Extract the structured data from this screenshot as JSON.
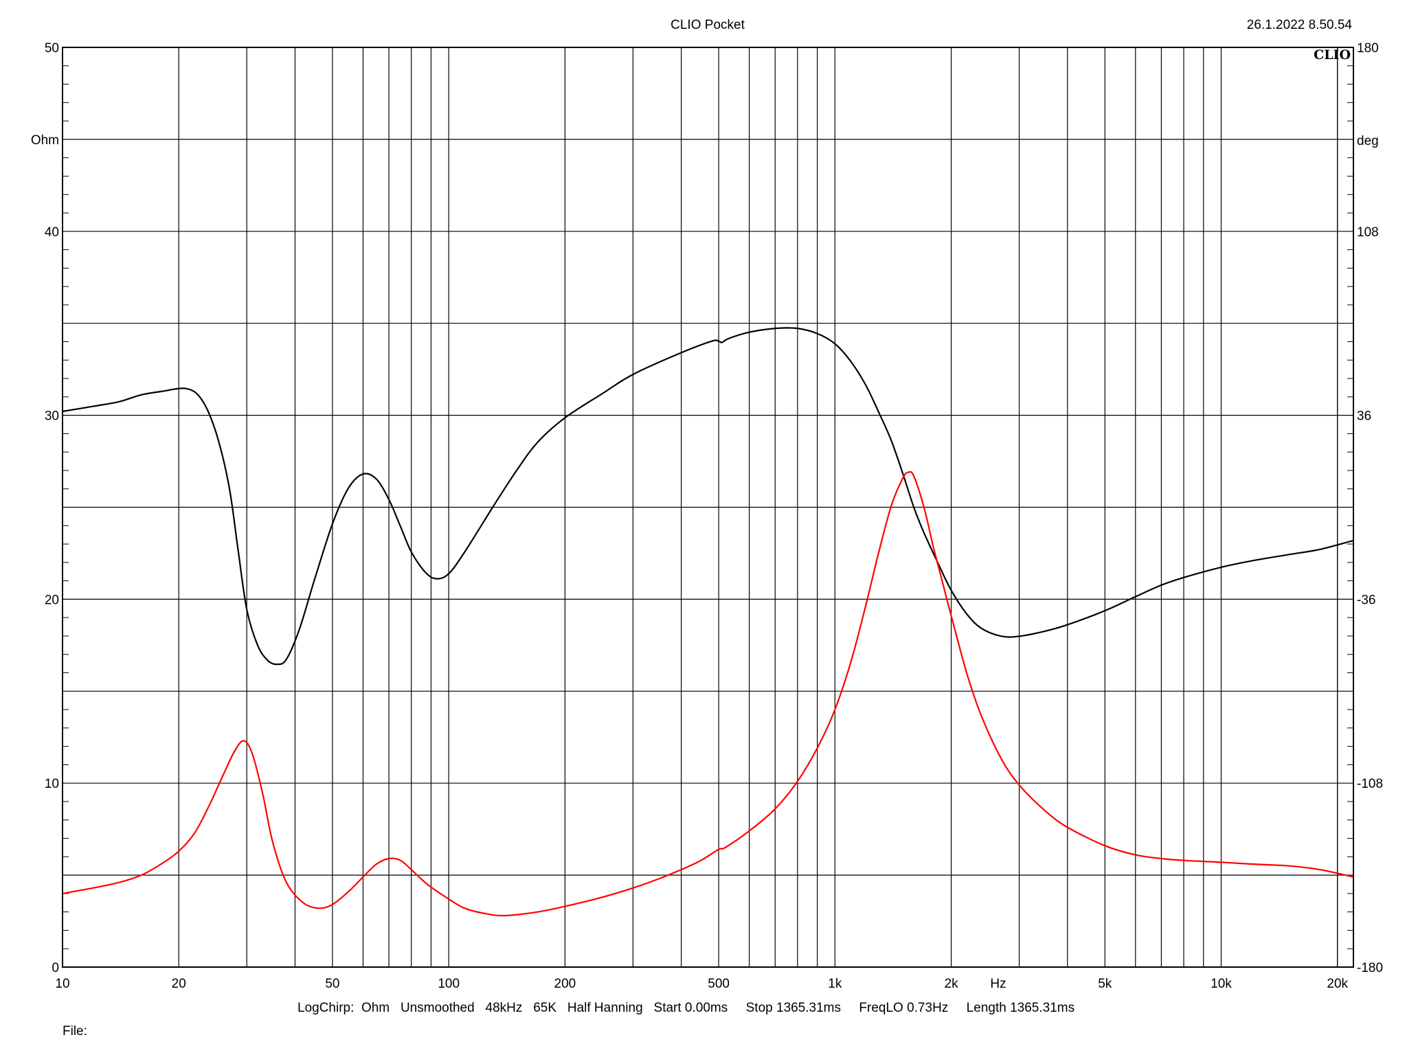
{
  "header": {
    "title": "CLIO Pocket",
    "datetime": "26.1.2022 8.50.54",
    "logo": "CLIO"
  },
  "footer": {
    "settings": "LogChirp:  Ohm   Unsmoothed   48kHz   65K   Half Hanning   Start 0.00ms     Stop 1365.31ms     FreqLO 0.73Hz     Length 1365.31ms",
    "file_label": "File:"
  },
  "chart_data": {
    "type": "line",
    "xscale": "log",
    "xlim": [
      10,
      22000
    ],
    "x_unit_label": "Hz",
    "x_tick_labels": [
      {
        "value": 10,
        "label": "10"
      },
      {
        "value": 20,
        "label": "20"
      },
      {
        "value": 50,
        "label": "50"
      },
      {
        "value": 100,
        "label": "100"
      },
      {
        "value": 200,
        "label": "200"
      },
      {
        "value": 500,
        "label": "500"
      },
      {
        "value": 1000,
        "label": "1k"
      },
      {
        "value": 2000,
        "label": "2k"
      },
      {
        "value": 5000,
        "label": "5k"
      },
      {
        "value": 10000,
        "label": "10k"
      },
      {
        "value": 20000,
        "label": "20k"
      }
    ],
    "y_left": {
      "unit": "Ohm",
      "range": [
        0,
        50
      ],
      "tick_labels": [
        {
          "value": 0,
          "label": "0"
        },
        {
          "value": 10,
          "label": "10"
        },
        {
          "value": 20,
          "label": "20"
        },
        {
          "value": 30,
          "label": "30"
        },
        {
          "value": 40,
          "label": "40"
        },
        {
          "value": 50,
          "label": "50"
        }
      ]
    },
    "y_right": {
      "unit": "deg",
      "range": [
        -180,
        180
      ],
      "tick_labels": [
        {
          "value": -180,
          "label": "-180"
        },
        {
          "value": -108,
          "label": "-108"
        },
        {
          "value": -36,
          "label": "-36"
        },
        {
          "value": 36,
          "label": "36"
        },
        {
          "value": 108,
          "label": "108"
        },
        {
          "value": 180,
          "label": "180"
        }
      ]
    },
    "grid": true,
    "series": [
      {
        "axis": "right",
        "color": "#000000",
        "points": [
          [
            10,
            37.5
          ],
          [
            12,
            39.5
          ],
          [
            14,
            41.3
          ],
          [
            16,
            44.0
          ],
          [
            18,
            45.3
          ],
          [
            21,
            46.4
          ],
          [
            23,
            41.8
          ],
          [
            25,
            29.0
          ],
          [
            27,
            8.0
          ],
          [
            28.5,
            -17.0
          ],
          [
            30,
            -40.0
          ],
          [
            32,
            -54.0
          ],
          [
            34,
            -60.0
          ],
          [
            36,
            -61.5
          ],
          [
            38,
            -59.5
          ],
          [
            41,
            -48.0
          ],
          [
            45,
            -28.0
          ],
          [
            50,
            -6.5
          ],
          [
            55,
            7.5
          ],
          [
            60,
            13.0
          ],
          [
            65,
            11.0
          ],
          [
            70,
            3.0
          ],
          [
            75,
            -7.5
          ],
          [
            80,
            -17.5
          ],
          [
            87,
            -25.5
          ],
          [
            93,
            -28.0
          ],
          [
            100,
            -26.0
          ],
          [
            110,
            -17.5
          ],
          [
            130,
            0.0
          ],
          [
            150,
            14.5
          ],
          [
            170,
            25.5
          ],
          [
            200,
            35.0
          ],
          [
            250,
            44.5
          ],
          [
            300,
            52.0
          ],
          [
            400,
            60.5
          ],
          [
            480,
            65.0
          ],
          [
            500,
            65.0
          ],
          [
            510,
            64.5
          ],
          [
            530,
            66.0
          ],
          [
            600,
            68.5
          ],
          [
            700,
            70.0
          ],
          [
            800,
            70.0
          ],
          [
            900,
            68.0
          ],
          [
            1000,
            64.0
          ],
          [
            1100,
            57.0
          ],
          [
            1200,
            48.0
          ],
          [
            1300,
            37.0
          ],
          [
            1400,
            26.0
          ],
          [
            1500,
            13.0
          ],
          [
            1600,
            0.0
          ],
          [
            1700,
            -10.0
          ],
          [
            1850,
            -22.0
          ],
          [
            2000,
            -32.5
          ],
          [
            2200,
            -42.0
          ],
          [
            2400,
            -47.5
          ],
          [
            2700,
            -50.5
          ],
          [
            3000,
            -50.5
          ],
          [
            3500,
            -48.5
          ],
          [
            4000,
            -46.0
          ],
          [
            5000,
            -40.5
          ],
          [
            6000,
            -35.0
          ],
          [
            7000,
            -30.5
          ],
          [
            8000,
            -27.5
          ],
          [
            10000,
            -23.5
          ],
          [
            12000,
            -21.0
          ],
          [
            15000,
            -18.5
          ],
          [
            18000,
            -16.5
          ],
          [
            22000,
            -13.0
          ]
        ]
      },
      {
        "axis": "left",
        "color": "#ff0000",
        "points": [
          [
            10,
            4.0
          ],
          [
            12,
            4.3
          ],
          [
            14,
            4.6
          ],
          [
            16,
            5.0
          ],
          [
            18,
            5.6
          ],
          [
            20,
            6.3
          ],
          [
            22,
            7.3
          ],
          [
            24,
            8.8
          ],
          [
            26,
            10.4
          ],
          [
            28,
            11.8
          ],
          [
            29.5,
            12.3
          ],
          [
            31,
            11.6
          ],
          [
            33,
            9.4
          ],
          [
            35,
            6.8
          ],
          [
            38,
            4.6
          ],
          [
            42,
            3.5
          ],
          [
            46,
            3.2
          ],
          [
            50,
            3.4
          ],
          [
            55,
            4.1
          ],
          [
            60,
            4.9
          ],
          [
            65,
            5.6
          ],
          [
            70,
            5.9
          ],
          [
            75,
            5.8
          ],
          [
            80,
            5.3
          ],
          [
            88,
            4.5
          ],
          [
            100,
            3.7
          ],
          [
            110,
            3.2
          ],
          [
            125,
            2.9
          ],
          [
            140,
            2.8
          ],
          [
            170,
            3.0
          ],
          [
            200,
            3.3
          ],
          [
            250,
            3.8
          ],
          [
            300,
            4.3
          ],
          [
            350,
            4.8
          ],
          [
            400,
            5.3
          ],
          [
            450,
            5.8
          ],
          [
            500,
            6.4
          ],
          [
            520,
            6.5
          ],
          [
            600,
            7.4
          ],
          [
            700,
            8.6
          ],
          [
            800,
            10.1
          ],
          [
            900,
            11.9
          ],
          [
            1000,
            14.0
          ],
          [
            1100,
            16.6
          ],
          [
            1200,
            19.6
          ],
          [
            1300,
            22.6
          ],
          [
            1400,
            25.1
          ],
          [
            1500,
            26.6
          ],
          [
            1550,
            26.9
          ],
          [
            1600,
            26.7
          ],
          [
            1700,
            25.0
          ],
          [
            1800,
            22.8
          ],
          [
            1900,
            20.9
          ],
          [
            2000,
            19.1
          ],
          [
            2200,
            15.9
          ],
          [
            2400,
            13.6
          ],
          [
            2700,
            11.3
          ],
          [
            3000,
            9.9
          ],
          [
            3500,
            8.5
          ],
          [
            4000,
            7.6
          ],
          [
            5000,
            6.6
          ],
          [
            6000,
            6.1
          ],
          [
            7000,
            5.9
          ],
          [
            8000,
            5.8
          ],
          [
            10000,
            5.7
          ],
          [
            12000,
            5.6
          ],
          [
            15000,
            5.5
          ],
          [
            18000,
            5.3
          ],
          [
            22000,
            4.9
          ]
        ]
      }
    ]
  }
}
